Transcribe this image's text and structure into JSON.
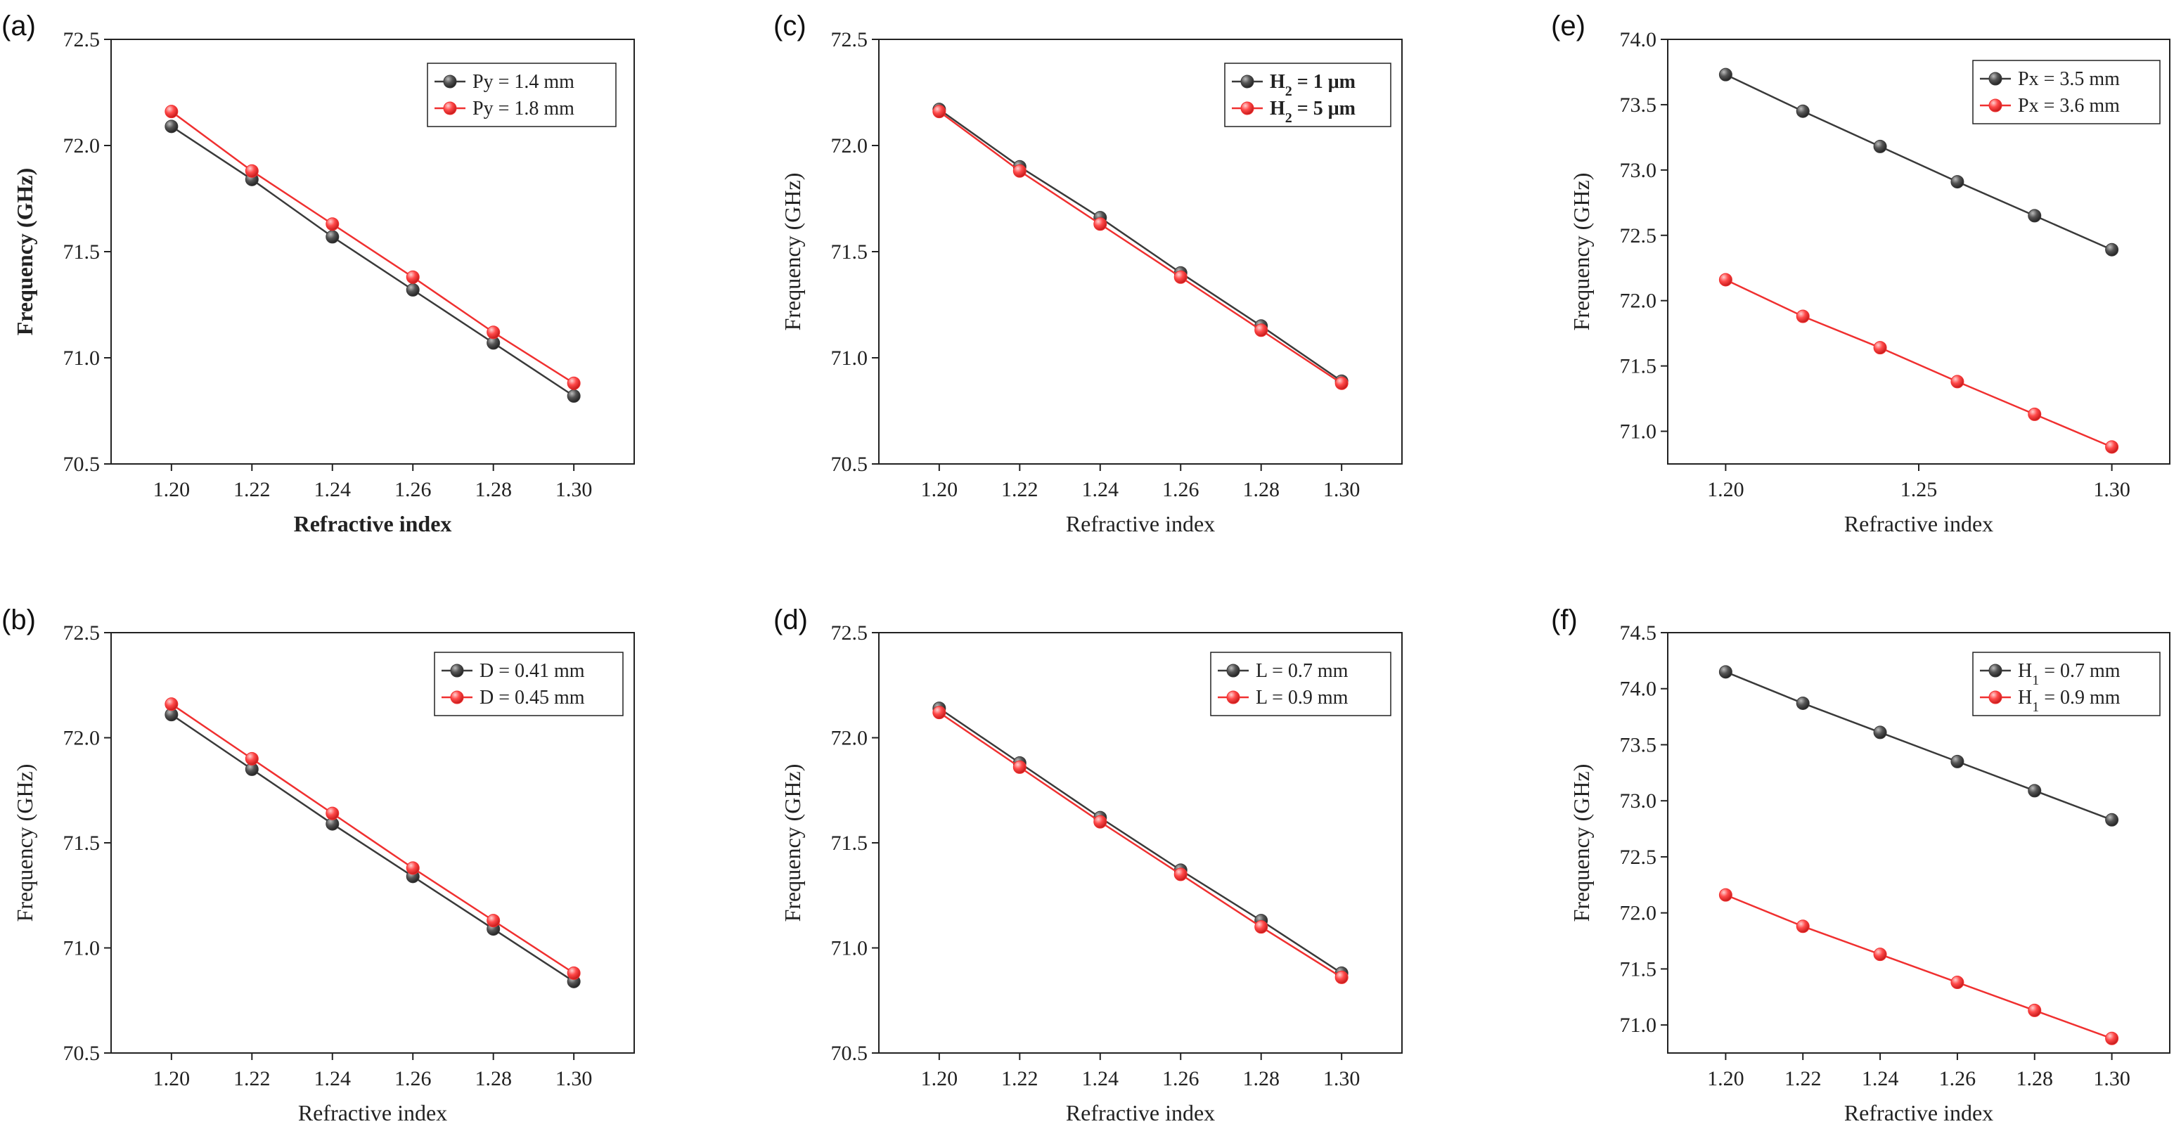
{
  "chart_data": [
    {
      "panel_label": "(a)",
      "type": "line",
      "x": [
        1.2,
        1.22,
        1.24,
        1.26,
        1.28,
        1.3
      ],
      "xlabel": "Refractive index",
      "ylabel": "Frequency (GHz)",
      "labels_bold": true,
      "xticks": [
        "1.20",
        "1.22",
        "1.24",
        "1.26",
        "1.28",
        "1.30"
      ],
      "xtick_values": [
        1.2,
        1.22,
        1.24,
        1.26,
        1.28,
        1.3
      ],
      "xlim": [
        1.185,
        1.315
      ],
      "yticks": [
        "70.5",
        "71.0",
        "71.5",
        "72.0",
        "72.5"
      ],
      "ytick_values": [
        70.5,
        71.0,
        71.5,
        72.0,
        72.5
      ],
      "ylim": [
        70.5,
        72.5
      ],
      "legend_position": "top-right",
      "series": [
        {
          "name": "Py = 1.4 mm",
          "name_parts": [
            {
              "t": "Py = 1.4 mm"
            }
          ],
          "color": "#3a3a3a",
          "values": [
            72.09,
            71.84,
            71.57,
            71.32,
            71.07,
            70.82
          ]
        },
        {
          "name": "Py = 1.8 mm",
          "name_parts": [
            {
              "t": "Py = 1.8 mm"
            }
          ],
          "color": "#f03030",
          "values": [
            72.16,
            71.88,
            71.63,
            71.38,
            71.12,
            70.88
          ]
        }
      ]
    },
    {
      "panel_label": "(c)",
      "type": "line",
      "x": [
        1.2,
        1.22,
        1.24,
        1.26,
        1.28,
        1.3
      ],
      "xlabel": "Refractive index",
      "ylabel": "Frequency (GHz)",
      "labels_bold": false,
      "legend_bold": true,
      "xticks": [
        "1.20",
        "1.22",
        "1.24",
        "1.26",
        "1.28",
        "1.30"
      ],
      "xtick_values": [
        1.2,
        1.22,
        1.24,
        1.26,
        1.28,
        1.3
      ],
      "xlim": [
        1.185,
        1.315
      ],
      "yticks": [
        "70.5",
        "71.0",
        "71.5",
        "72.0",
        "72.5"
      ],
      "ytick_values": [
        70.5,
        71.0,
        71.5,
        72.0,
        72.5
      ],
      "ylim": [
        70.5,
        72.5
      ],
      "legend_position": "top-right",
      "series": [
        {
          "name": "H2 = 1 μm",
          "name_parts": [
            {
              "t": "H"
            },
            {
              "t": "2",
              "sub": true
            },
            {
              "t": " = 1 μm"
            }
          ],
          "color": "#3a3a3a",
          "values": [
            72.17,
            71.9,
            71.66,
            71.4,
            71.15,
            70.89
          ]
        },
        {
          "name": "H2 = 5 μm",
          "name_parts": [
            {
              "t": "H"
            },
            {
              "t": "2",
              "sub": true
            },
            {
              "t": " = 5 μm"
            }
          ],
          "color": "#f03030",
          "values": [
            72.16,
            71.88,
            71.63,
            71.38,
            71.13,
            70.88
          ]
        }
      ]
    },
    {
      "panel_label": "(e)",
      "type": "line",
      "x": [
        1.2,
        1.22,
        1.24,
        1.26,
        1.28,
        1.3
      ],
      "xlabel": "Refractive index",
      "ylabel": "Frequency (GHz)",
      "labels_bold": false,
      "xticks": [
        "1.20",
        "1.25",
        "1.30"
      ],
      "xtick_values": [
        1.2,
        1.25,
        1.3
      ],
      "xlim": [
        1.185,
        1.315
      ],
      "yticks": [
        "71.0",
        "71.5",
        "72.0",
        "72.5",
        "73.0",
        "73.5",
        "74.0"
      ],
      "ytick_values": [
        71.0,
        71.5,
        72.0,
        72.5,
        73.0,
        73.5,
        74.0
      ],
      "ylim": [
        70.75,
        74.0
      ],
      "legend_position": "top-right",
      "series": [
        {
          "name": "Px = 3.5 mm",
          "name_parts": [
            {
              "t": "Px = 3.5 mm"
            }
          ],
          "color": "#3a3a3a",
          "values": [
            73.73,
            73.45,
            73.18,
            72.91,
            72.65,
            72.39
          ]
        },
        {
          "name": "Px = 3.6 mm",
          "name_parts": [
            {
              "t": "Px = 3.6 mm"
            }
          ],
          "color": "#f03030",
          "values": [
            72.16,
            71.88,
            71.64,
            71.38,
            71.13,
            70.88
          ]
        }
      ]
    },
    {
      "panel_label": "(b)",
      "type": "line",
      "x": [
        1.2,
        1.22,
        1.24,
        1.26,
        1.28,
        1.3
      ],
      "xlabel": "Refractive index",
      "ylabel": "Frequency (GHz)",
      "labels_bold": false,
      "xticks": [
        "1.20",
        "1.22",
        "1.24",
        "1.26",
        "1.28",
        "1.30"
      ],
      "xtick_values": [
        1.2,
        1.22,
        1.24,
        1.26,
        1.28,
        1.3
      ],
      "xlim": [
        1.185,
        1.315
      ],
      "yticks": [
        "70.5",
        "71.0",
        "71.5",
        "72.0",
        "72.5"
      ],
      "ytick_values": [
        70.5,
        71.0,
        71.5,
        72.0,
        72.5
      ],
      "ylim": [
        70.5,
        72.5
      ],
      "legend_position": "top-right",
      "series": [
        {
          "name": "D = 0.41 mm",
          "name_parts": [
            {
              "t": "D = 0.41 mm"
            }
          ],
          "color": "#3a3a3a",
          "values": [
            72.11,
            71.85,
            71.59,
            71.34,
            71.09,
            70.84
          ]
        },
        {
          "name": "D = 0.45 mm",
          "name_parts": [
            {
              "t": "D = 0.45 mm"
            }
          ],
          "color": "#f03030",
          "values": [
            72.16,
            71.9,
            71.64,
            71.38,
            71.13,
            70.88
          ]
        }
      ]
    },
    {
      "panel_label": "(d)",
      "type": "line",
      "x": [
        1.2,
        1.22,
        1.24,
        1.26,
        1.28,
        1.3
      ],
      "xlabel": "Refractive index",
      "ylabel": "Frequency (GHz)",
      "labels_bold": false,
      "xticks": [
        "1.20",
        "1.22",
        "1.24",
        "1.26",
        "1.28",
        "1.30"
      ],
      "xtick_values": [
        1.2,
        1.22,
        1.24,
        1.26,
        1.28,
        1.3
      ],
      "xlim": [
        1.185,
        1.315
      ],
      "yticks": [
        "70.5",
        "71.0",
        "71.5",
        "72.0",
        "72.5"
      ],
      "ytick_values": [
        70.5,
        71.0,
        71.5,
        72.0,
        72.5
      ],
      "ylim": [
        70.5,
        72.5
      ],
      "legend_position": "top-right",
      "series": [
        {
          "name": "L = 0.7 mm",
          "name_parts": [
            {
              "t": "L = 0.7 mm"
            }
          ],
          "color": "#3a3a3a",
          "values": [
            72.14,
            71.88,
            71.62,
            71.37,
            71.13,
            70.88
          ]
        },
        {
          "name": "L = 0.9 mm",
          "name_parts": [
            {
              "t": "L = 0.9 mm"
            }
          ],
          "color": "#f03030",
          "values": [
            72.12,
            71.86,
            71.6,
            71.35,
            71.1,
            70.86
          ]
        }
      ]
    },
    {
      "panel_label": "(f)",
      "type": "line",
      "x": [
        1.2,
        1.22,
        1.24,
        1.26,
        1.28,
        1.3
      ],
      "xlabel": "Refractive index",
      "ylabel": "Frequency (GHz)",
      "labels_bold": false,
      "xticks": [
        "1.20",
        "1.22",
        "1.24",
        "1.26",
        "1.28",
        "1.30"
      ],
      "xtick_values": [
        1.2,
        1.22,
        1.24,
        1.26,
        1.28,
        1.3
      ],
      "xlim": [
        1.185,
        1.315
      ],
      "yticks": [
        "71.0",
        "71.5",
        "72.0",
        "72.5",
        "73.0",
        "73.5",
        "74.0",
        "74.5"
      ],
      "ytick_values": [
        71.0,
        71.5,
        72.0,
        72.5,
        73.0,
        73.5,
        74.0,
        74.5
      ],
      "ylim": [
        70.75,
        74.5
      ],
      "legend_position": "top-right",
      "series": [
        {
          "name": "H1 = 0.7 mm",
          "name_parts": [
            {
              "t": "H"
            },
            {
              "t": "1",
              "sub": true
            },
            {
              "t": " = 0.7 mm"
            }
          ],
          "color": "#3a3a3a",
          "values": [
            74.15,
            73.87,
            73.61,
            73.35,
            73.09,
            72.83
          ]
        },
        {
          "name": "H1 = 0.9 mm",
          "name_parts": [
            {
              "t": "H"
            },
            {
              "t": "1",
              "sub": true
            },
            {
              "t": " = 0.9 mm"
            }
          ],
          "color": "#f03030",
          "values": [
            72.16,
            71.88,
            71.63,
            71.38,
            71.13,
            70.88
          ]
        }
      ]
    }
  ]
}
